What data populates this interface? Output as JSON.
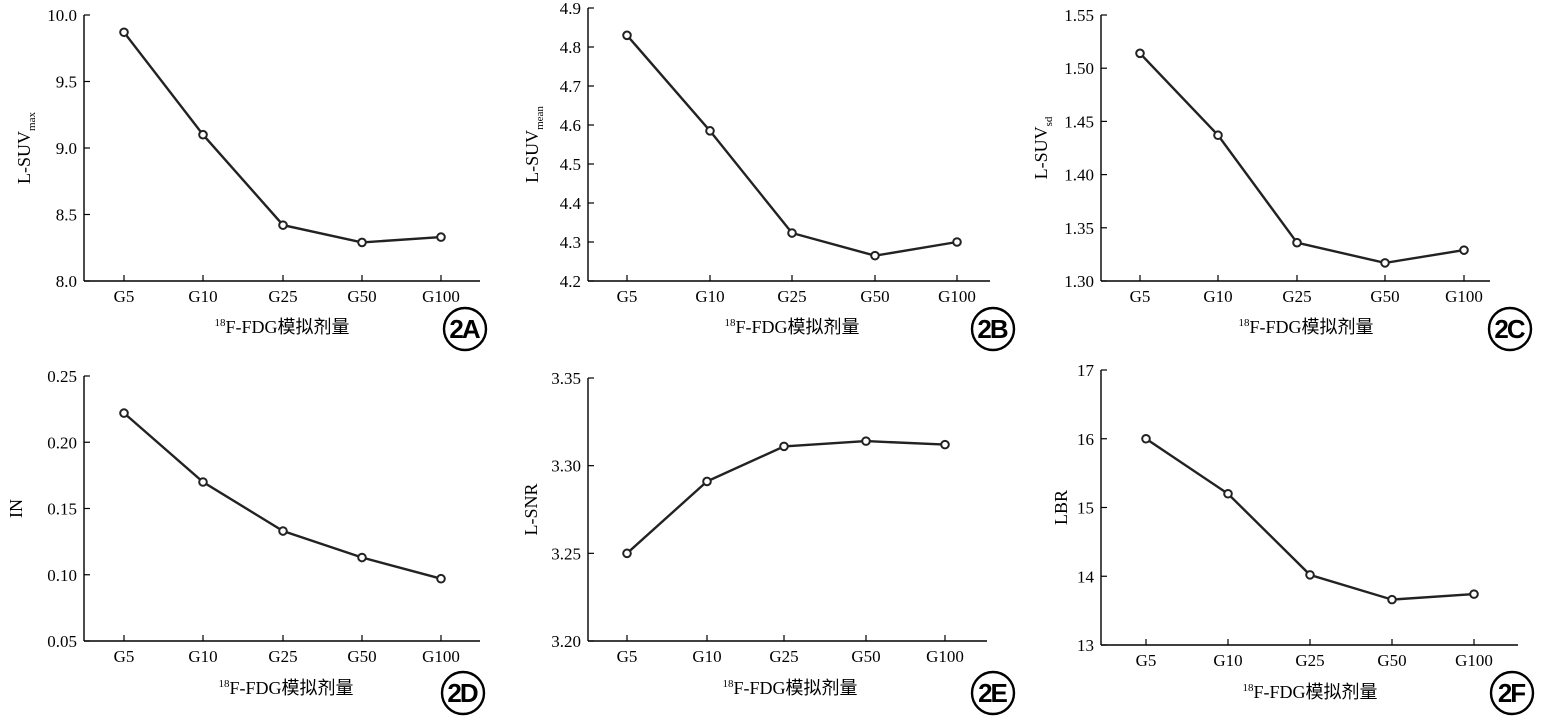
{
  "chart_data": [
    {
      "type": "line",
      "panel_label": "2A",
      "categories": [
        "G5",
        "G10",
        "G25",
        "G50",
        "G100"
      ],
      "values": [
        9.87,
        9.1,
        8.42,
        8.29,
        8.33
      ],
      "ylabel_main": "L-SUV",
      "ylabel_sub": "max",
      "xlabel_sup": "18",
      "xlabel": "F-FDG模拟剂量",
      "ylim": [
        8.0,
        10.0
      ],
      "yticks": [
        8.0,
        8.5,
        9.0,
        9.5,
        10.0
      ],
      "ytick_labels": [
        "8.0",
        "8.5",
        "9.0",
        "9.5",
        "10.0"
      ]
    },
    {
      "type": "line",
      "panel_label": "2B",
      "categories": [
        "G5",
        "G10",
        "G25",
        "G50",
        "G100"
      ],
      "values": [
        4.83,
        4.585,
        4.323,
        4.265,
        4.3
      ],
      "ylabel_main": "L-SUV",
      "ylabel_sub": "mean",
      "xlabel_sup": "18",
      "xlabel": "F-FDG模拟剂量",
      "ylim": [
        4.2,
        4.9
      ],
      "yticks": [
        4.2,
        4.3,
        4.4,
        4.5,
        4.6,
        4.7,
        4.8,
        4.9
      ],
      "ytick_labels": [
        "4.2",
        "4.3",
        "4.4",
        "4.5",
        "4.6",
        "4.7",
        "4.8",
        "4.9"
      ]
    },
    {
      "type": "line",
      "panel_label": "2C",
      "categories": [
        "G5",
        "G10",
        "G25",
        "G50",
        "G100"
      ],
      "values": [
        1.514,
        1.437,
        1.336,
        1.317,
        1.329
      ],
      "ylabel_main": "L-SUV",
      "ylabel_sub": "sd",
      "xlabel_sup": "18",
      "xlabel": "F-FDG模拟剂量",
      "ylim": [
        1.3,
        1.55
      ],
      "yticks": [
        1.3,
        1.35,
        1.4,
        1.45,
        1.5,
        1.55
      ],
      "ytick_labels": [
        "1.30",
        "1.35",
        "1.40",
        "1.45",
        "1.50",
        "1.55"
      ]
    },
    {
      "type": "line",
      "panel_label": "2D",
      "categories": [
        "G5",
        "G10",
        "G25",
        "G50",
        "G100"
      ],
      "values": [
        0.222,
        0.17,
        0.133,
        0.113,
        0.097
      ],
      "ylabel_main": "IN",
      "ylabel_sub": "",
      "xlabel_sup": "18",
      "xlabel": "F-FDG模拟剂量",
      "ylim": [
        0.05,
        0.25
      ],
      "yticks": [
        0.05,
        0.1,
        0.15,
        0.2,
        0.25
      ],
      "ytick_labels": [
        "0.05",
        "0.10",
        "0.15",
        "0.20",
        "0.25"
      ]
    },
    {
      "type": "line",
      "panel_label": "2E",
      "categories": [
        "G5",
        "G10",
        "G25",
        "G50",
        "G100"
      ],
      "values": [
        3.25,
        3.291,
        3.311,
        3.314,
        3.312
      ],
      "ylabel_main": "L-SNR",
      "ylabel_sub": "",
      "xlabel_sup": "18",
      "xlabel": "F-FDG模拟剂量",
      "ylim": [
        3.2,
        3.35
      ],
      "yticks": [
        3.2,
        3.25,
        3.3,
        3.35
      ],
      "ytick_labels": [
        "3.20",
        "3.25",
        "3.30",
        "3.35"
      ]
    },
    {
      "type": "line",
      "panel_label": "2F",
      "categories": [
        "G5",
        "G10",
        "G25",
        "G50",
        "G100"
      ],
      "values": [
        16.0,
        15.2,
        14.02,
        13.66,
        13.74
      ],
      "ylabel_main": "LBR",
      "ylabel_sub": "",
      "xlabel_sup": "18",
      "xlabel": "F-FDG模拟剂量",
      "ylim": [
        13,
        17
      ],
      "yticks": [
        13,
        14,
        15,
        16,
        17
      ],
      "ytick_labels": [
        "13",
        "14",
        "15",
        "16",
        "17"
      ]
    }
  ]
}
